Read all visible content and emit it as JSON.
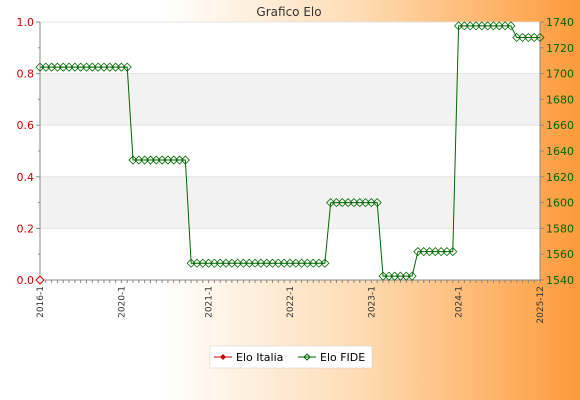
{
  "chart_data": {
    "type": "line",
    "title": "Grafico Elo",
    "left_axis": {
      "ylim": [
        0,
        1
      ],
      "ticks": [
        "0.0",
        "0.2",
        "0.4",
        "0.6",
        "0.8",
        "1.0"
      ],
      "color": "#cc0000"
    },
    "right_axis": {
      "ylim": [
        1540,
        1740
      ],
      "ticks": [
        "1540",
        "1560",
        "1580",
        "1600",
        "1620",
        "1640",
        "1660",
        "1680",
        "1700",
        "1720",
        "1740"
      ],
      "color": "#006600"
    },
    "grid": true,
    "grid_style": "alternating horizontal bands",
    "legend_placement": "bottom-center",
    "x_count": 87,
    "x_tick_labels": [
      "2016-1",
      "2020-1",
      "2021-1",
      "2022-1",
      "2023-1",
      "2024-1",
      "2025-12"
    ],
    "series": [
      {
        "name": "Elo Italia",
        "axis": "left",
        "color": "#cc0000",
        "values": [
          0
        ]
      },
      {
        "name": "Elo FIDE",
        "axis": "right",
        "color": "#006600",
        "segments": [
          {
            "count": 16,
            "value": 1705
          },
          {
            "count": 10,
            "value": 1633
          },
          {
            "count": 24,
            "value": 1553
          },
          {
            "count": 9,
            "value": 1600
          },
          {
            "count": 6,
            "value": 1543
          },
          {
            "count": 7,
            "value": 1562
          },
          {
            "count": 10,
            "value": 1737
          },
          {
            "count": 5,
            "value": 1728
          }
        ]
      }
    ]
  }
}
